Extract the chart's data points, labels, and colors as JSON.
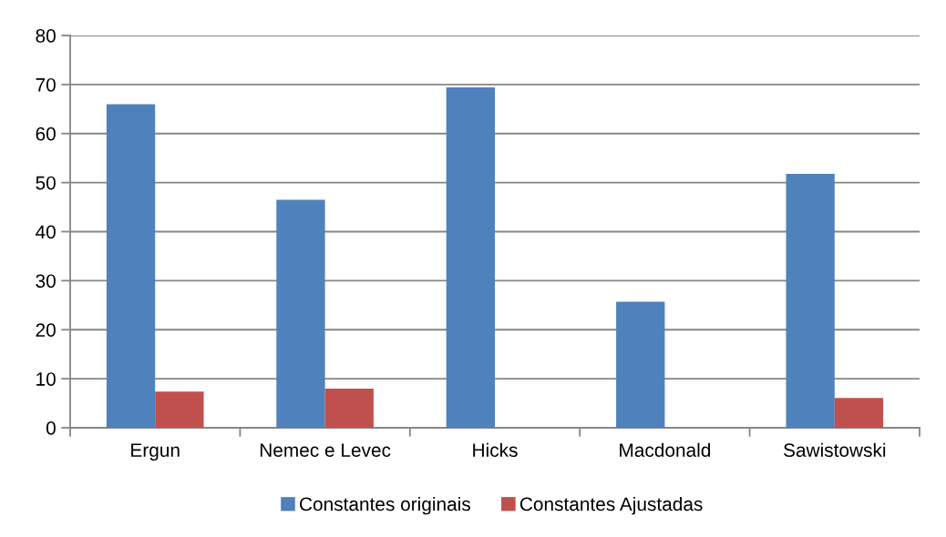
{
  "chart_data": {
    "type": "bar",
    "categories": [
      "Ergun",
      "Nemec e Levec",
      "Hicks",
      "Macdonald",
      "Sawistowski"
    ],
    "series": [
      {
        "name": "Constantes originais",
        "color": "#4f81bd",
        "values": [
          66.0,
          46.5,
          69.4,
          25.7,
          51.8
        ]
      },
      {
        "name": "Constantes Ajustadas",
        "color": "#c0504d",
        "values": [
          7.4,
          8.0,
          null,
          null,
          6.1
        ]
      }
    ],
    "ylim": [
      0,
      80
    ],
    "yticks": [
      0,
      10,
      20,
      30,
      40,
      50,
      60,
      70,
      80
    ],
    "grid": "y",
    "legend": "bottom"
  }
}
